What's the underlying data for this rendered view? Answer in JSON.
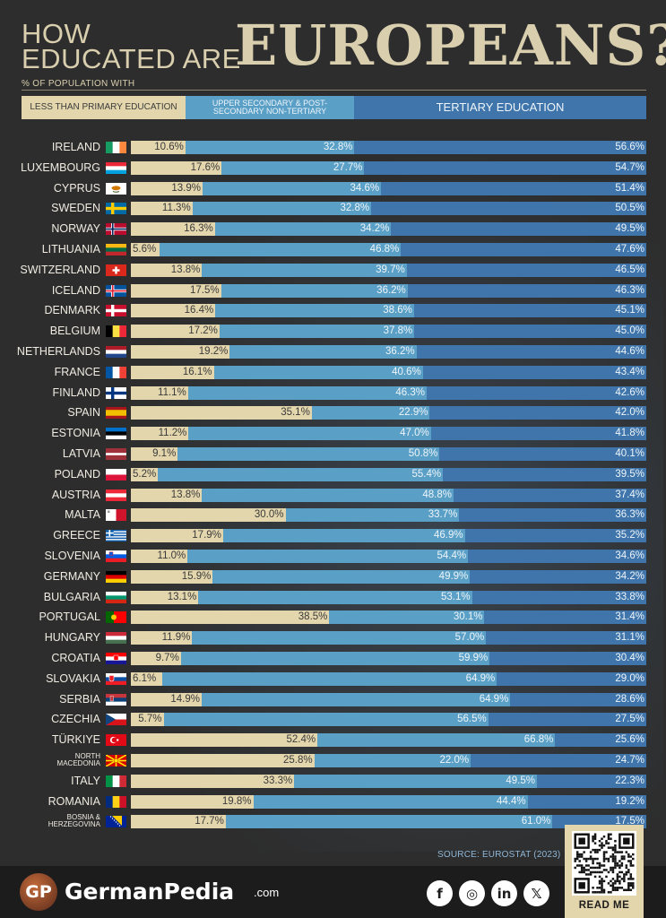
{
  "title": {
    "line1": "HOW",
    "line2": "EDUCATED ARE",
    "big": "EUROPEANS?"
  },
  "subtitle": "% OF POPULATION WITH",
  "legend": {
    "primary": "LESS THAN PRIMARY EDUCATION",
    "secondary": "UPPER SECONDARY & POST-SECONDARY NON-TERTIARY",
    "tertiary": "TERTIARY EDUCATION"
  },
  "colors": {
    "primary": "#e3d6ad",
    "secondary": "#5a9fc6",
    "tertiary": "#3f75ab",
    "background": "#2d2d2d"
  },
  "chart_data": {
    "type": "bar",
    "orientation": "horizontal-stacked",
    "legend_position": "top",
    "series_names": [
      "LESS THAN PRIMARY EDUCATION",
      "UPPER SECONDARY & POST-SECONDARY NON-TERTIARY",
      "TERTIARY EDUCATION"
    ],
    "rows": [
      {
        "country": "IRELAND",
        "flag": "ie",
        "a": 10.6,
        "b": 32.8,
        "c": 56.6
      },
      {
        "country": "LUXEMBOURG",
        "flag": "lu",
        "a": 17.6,
        "b": 27.7,
        "c": 54.7
      },
      {
        "country": "CYPRUS",
        "flag": "cy",
        "a": 13.9,
        "b": 34.6,
        "c": 51.4
      },
      {
        "country": "SWEDEN",
        "flag": "se",
        "a": 11.3,
        "b": 32.8,
        "c": 50.5
      },
      {
        "country": "NORWAY",
        "flag": "no",
        "a": 16.3,
        "b": 34.2,
        "c": 49.5
      },
      {
        "country": "LITHUANIA",
        "flag": "lt",
        "a": 5.6,
        "b": 46.8,
        "c": 47.6
      },
      {
        "country": "SWITZERLAND",
        "flag": "ch",
        "a": 13.8,
        "b": 39.7,
        "c": 46.5
      },
      {
        "country": "ICELAND",
        "flag": "is",
        "a": 17.5,
        "b": 36.2,
        "c": 46.3
      },
      {
        "country": "DENMARK",
        "flag": "dk",
        "a": 16.4,
        "b": 38.6,
        "c": 45.1
      },
      {
        "country": "BELGIUM",
        "flag": "be",
        "a": 17.2,
        "b": 37.8,
        "c": 45.0
      },
      {
        "country": "NETHERLANDS",
        "flag": "nl",
        "a": 19.2,
        "b": 36.2,
        "c": 44.6
      },
      {
        "country": "FRANCE",
        "flag": "fr",
        "a": 16.1,
        "b": 40.6,
        "c": 43.4
      },
      {
        "country": "FINLAND",
        "flag": "fi",
        "a": 11.1,
        "b": 46.3,
        "c": 42.6
      },
      {
        "country": "SPAIN",
        "flag": "es",
        "a": 35.1,
        "b": 22.9,
        "c": 42.0
      },
      {
        "country": "ESTONIA",
        "flag": "ee",
        "a": 11.2,
        "b": 47.0,
        "c": 41.8
      },
      {
        "country": "LATVIA",
        "flag": "lv",
        "a": 9.1,
        "b": 50.8,
        "c": 40.1
      },
      {
        "country": "POLAND",
        "flag": "pl",
        "a": 5.2,
        "b": 55.4,
        "c": 39.5
      },
      {
        "country": "AUSTRIA",
        "flag": "at",
        "a": 13.8,
        "b": 48.8,
        "c": 37.4
      },
      {
        "country": "MALTA",
        "flag": "mt",
        "a": 30.0,
        "b": 33.7,
        "c": 36.3
      },
      {
        "country": "GREECE",
        "flag": "gr",
        "a": 17.9,
        "b": 46.9,
        "c": 35.2
      },
      {
        "country": "SLOVENIA",
        "flag": "si",
        "a": 11.0,
        "b": 54.4,
        "c": 34.6
      },
      {
        "country": "GERMANY",
        "flag": "de",
        "a": 15.9,
        "b": 49.9,
        "c": 34.2
      },
      {
        "country": "BULGARIA",
        "flag": "bg",
        "a": 13.1,
        "b": 53.1,
        "c": 33.8
      },
      {
        "country": "PORTUGAL",
        "flag": "pt",
        "a": 38.5,
        "b": 30.1,
        "c": 31.4
      },
      {
        "country": "HUNGARY",
        "flag": "hu",
        "a": 11.9,
        "b": 57.0,
        "c": 31.1
      },
      {
        "country": "CROATIA",
        "flag": "hr",
        "a": 9.7,
        "b": 59.9,
        "c": 30.4
      },
      {
        "country": "SLOVAKIA",
        "flag": "sk",
        "a": 6.1,
        "b": 64.9,
        "c": 29.0
      },
      {
        "country": "SERBIA",
        "flag": "rs",
        "a": 14.9,
        "b": 64.9,
        "c": 28.6
      },
      {
        "country": "CZECHIA",
        "flag": "cz",
        "a": 5.7,
        "b": 56.5,
        "c": 27.5
      },
      {
        "country": "TÜRKIYE",
        "flag": "tr",
        "a": 52.4,
        "b": 66.8,
        "c": 25.6
      },
      {
        "country": "NORTH MACEDONIA",
        "flag": "mk",
        "a": 25.8,
        "b": 22.0,
        "c": 24.7
      },
      {
        "country": "ITALY",
        "flag": "it",
        "a": 33.3,
        "b": 49.5,
        "c": 22.3
      },
      {
        "country": "ROMANIA",
        "flag": "ro",
        "a": 19.8,
        "b": 44.4,
        "c": 19.2
      },
      {
        "country": "BOSNIA & HERZEGOVINA",
        "flag": "ba",
        "a": 17.7,
        "b": 61.0,
        "c": 17.5
      }
    ]
  },
  "source": "SOURCE: EUROSTAT (2023)",
  "footer": {
    "logo_initials": "GP",
    "brand": "GermanPedia",
    "brand_suffix": ".com",
    "socials": [
      "f",
      "◎",
      "in",
      "𝕏"
    ],
    "social_icons": [
      "facebook-icon",
      "instagram-icon",
      "linkedin-icon",
      "x-icon"
    ],
    "read_me": "READ ME"
  }
}
